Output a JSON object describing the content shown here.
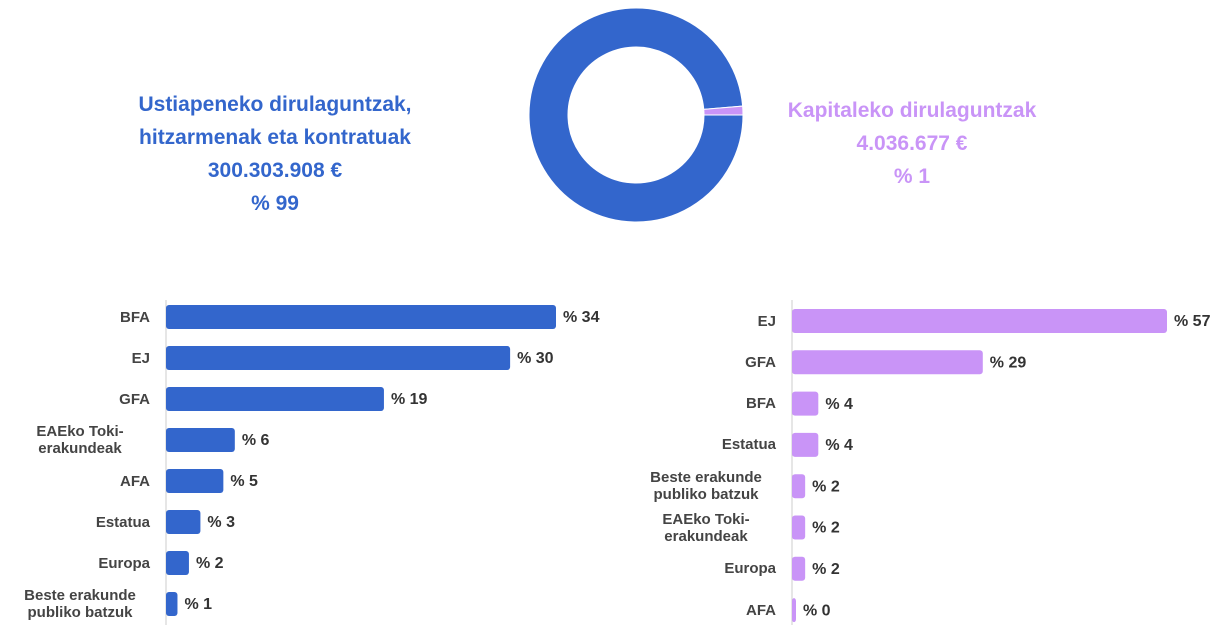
{
  "chart_data": [
    {
      "type": "pie",
      "categories": [
        "Ustiapeneko dirulaguntzak, hitzarmenak eta kontratuak",
        "Kapitaleko dirulaguntzak"
      ],
      "values": [
        300303908,
        4036677
      ],
      "value_labels": [
        "300.303.908 €",
        "4.036.677 €"
      ],
      "shares": [
        99,
        1
      ],
      "share_labels": [
        "% 99",
        "% 1"
      ],
      "colors": [
        "#3366cc",
        "#c994f7"
      ]
    },
    {
      "type": "bar",
      "categories": [
        "BFA",
        "EJ",
        "GFA",
        "EAEko Toki-erakundeak",
        "AFA",
        "Estatua",
        "Europa",
        "Beste erakunde publiko batzuk"
      ],
      "values": [
        34,
        30,
        19,
        6,
        5,
        3,
        2,
        1
      ],
      "value_labels": [
        "% 34",
        "% 30",
        "% 19",
        "% 6",
        "% 5",
        "% 3",
        "% 2",
        "% 1"
      ],
      "color": "#3366cc"
    },
    {
      "type": "bar",
      "categories": [
        "EJ",
        "GFA",
        "BFA",
        "Estatua",
        "Beste erakunde publiko batzuk",
        "EAEko Toki-erakundeak",
        "Europa",
        "AFA"
      ],
      "values": [
        57,
        29,
        4,
        4,
        2,
        2,
        2,
        0
      ],
      "value_labels": [
        "% 57",
        "% 29",
        "% 4",
        "% 4",
        "% 2",
        "% 2",
        "% 2",
        "% 0"
      ],
      "color": "#c994f7"
    }
  ]
}
